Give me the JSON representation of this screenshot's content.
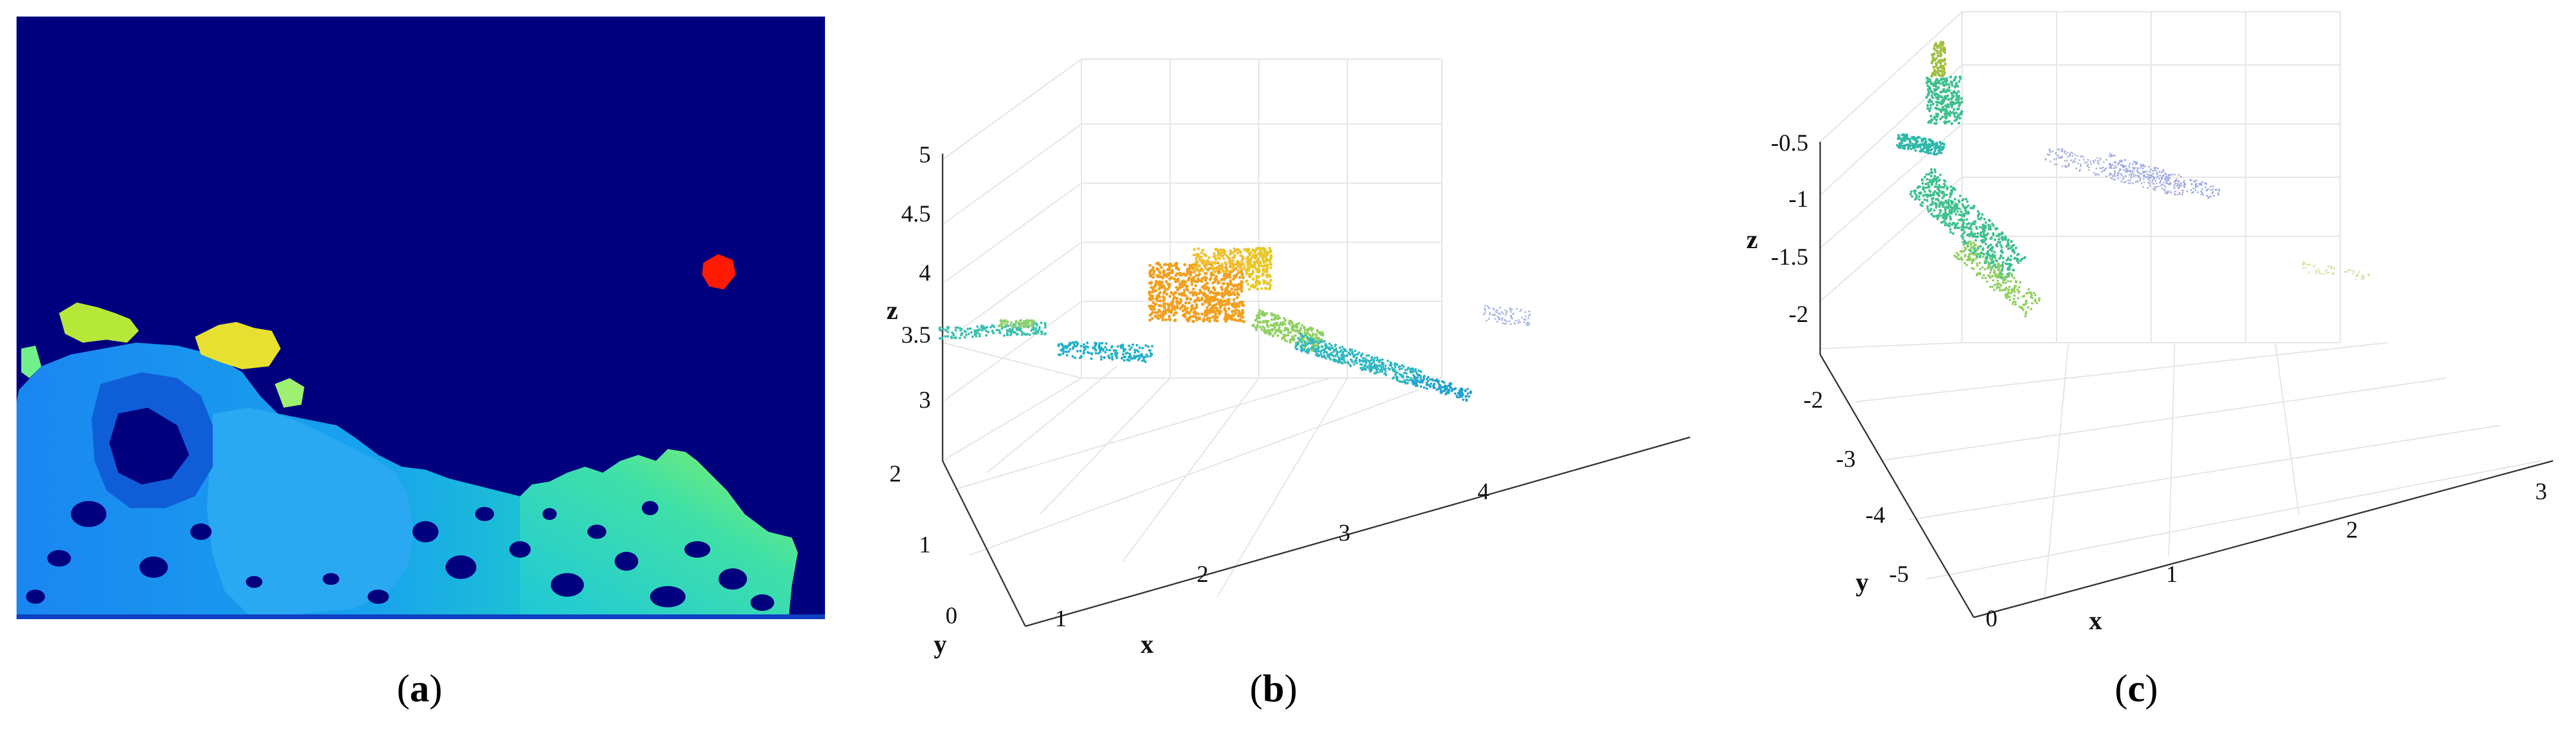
{
  "figure": {
    "captions": [
      "a",
      "b",
      "c"
    ],
    "colors": {
      "depth_background": "#00007f",
      "axis_line": "#333333",
      "grid_line": "#e4e4e4"
    }
  },
  "chart_data": [
    {
      "panel": "a",
      "type": "heatmap",
      "description_colormap": "jet",
      "highlight_blob_color": "#ff1a00"
    },
    {
      "panel": "b",
      "type": "scatter",
      "xlabel": "x",
      "ylabel": "y",
      "zlabel": "z",
      "x_ticks": [
        "1",
        "2",
        "3",
        "4"
      ],
      "y_ticks": [
        "0",
        "1",
        "2"
      ],
      "z_ticks": [
        "3",
        "3.5",
        "4",
        "4.5",
        "5"
      ],
      "xlim": [
        0.5,
        4.5
      ],
      "ylim": [
        -0.5,
        2.2
      ],
      "zlim": [
        2.8,
        5.0
      ]
    },
    {
      "panel": "c",
      "type": "scatter",
      "xlabel": "x",
      "ylabel": "y",
      "zlabel": "z",
      "x_ticks": [
        "0",
        "1",
        "2",
        "3"
      ],
      "y_ticks": [
        "-2",
        "-3",
        "-4",
        "-5"
      ],
      "z_ticks": [
        "-0.5",
        "-1",
        "-1.5",
        "-2"
      ],
      "xlim": [
        0,
        3
      ],
      "ylim": [
        -5.8,
        -1.8
      ],
      "zlim": [
        -2.2,
        -0.5
      ]
    }
  ]
}
